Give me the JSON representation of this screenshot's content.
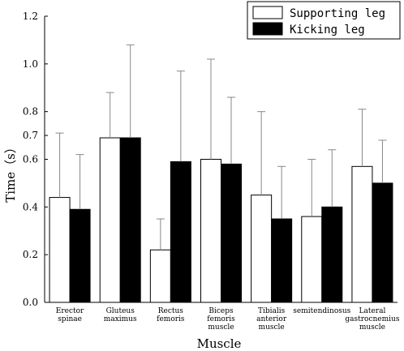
{
  "chart_data": {
    "type": "bar",
    "title": "",
    "xlabel": "Muscle",
    "ylabel": "Time（s）",
    "ylim": [
      0,
      1.2
    ],
    "yticks": [
      "0.0",
      "0.2",
      "0.4",
      "0.6",
      "0.7",
      "0.8",
      "1.0",
      "1.2"
    ],
    "ytick_values": [
      0,
      0.2,
      0.4,
      0.6,
      0.7,
      0.8,
      1.0,
      1.2
    ],
    "categories": [
      [
        "Erector",
        "spinae"
      ],
      [
        "Gluteus",
        "maximus"
      ],
      [
        "Rectus",
        "femoris"
      ],
      [
        "Biceps",
        "femoris",
        "muscle"
      ],
      [
        "Tibialis",
        "anterior",
        "muscle"
      ],
      [
        "semitendinosus"
      ],
      [
        "Lateral",
        "gastrocnemius",
        "muscle"
      ]
    ],
    "series": [
      {
        "name": "Supporting leg",
        "color": "#ffffff",
        "values": [
          0.44,
          0.69,
          0.22,
          0.6,
          0.45,
          0.36,
          0.57
        ],
        "error": [
          0.27,
          0.19,
          0.13,
          0.42,
          0.35,
          0.24,
          0.24
        ]
      },
      {
        "name": "Kicking leg",
        "color": "#000000",
        "values": [
          0.39,
          0.69,
          0.59,
          0.58,
          0.35,
          0.4,
          0.5
        ],
        "error": [
          0.23,
          0.39,
          0.38,
          0.28,
          0.22,
          0.24,
          0.18
        ]
      }
    ],
    "legend": "top-right",
    "grid": false
  }
}
